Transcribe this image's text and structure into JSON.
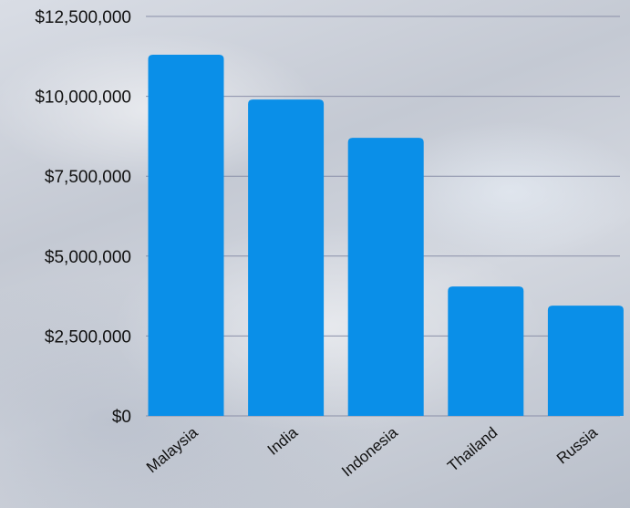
{
  "chart_data": {
    "type": "bar",
    "categories": [
      "Malaysia",
      "India",
      "Indonesia",
      "Thailand",
      "Russia"
    ],
    "values": [
      11300000,
      9900000,
      8700000,
      4050000,
      3450000
    ],
    "ylim": [
      0,
      12500000
    ],
    "yticks": [
      0,
      2500000,
      5000000,
      7500000,
      10000000,
      12500000
    ],
    "ytick_labels": [
      "$0",
      "$2,500,000",
      "$5,000,000",
      "$7,500,000",
      "$10,000,000",
      "$12,500,000"
    ],
    "grid": true,
    "bar_color": "#0a8fe8",
    "grid_color": "#8a8fa8"
  }
}
